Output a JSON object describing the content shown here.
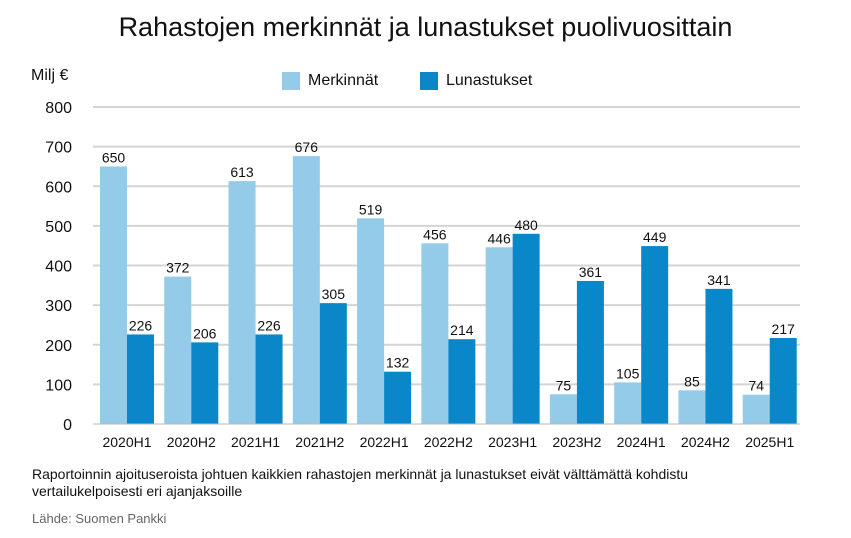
{
  "chart_data": {
    "type": "bar",
    "title": "Rahastojen merkinnät ja lunastukset puolivuosittain",
    "ylabel": "Milj €",
    "xlabel": "",
    "ylim": [
      0,
      800
    ],
    "yticks": [
      0,
      100,
      200,
      300,
      400,
      500,
      600,
      700,
      800
    ],
    "grid": true,
    "legend_position": "top",
    "categories": [
      "2020H1",
      "2020H2",
      "2021H1",
      "2021H2",
      "2022H1",
      "2022H2",
      "2023H1",
      "2023H2",
      "2024H1",
      "2024H2",
      "2025H1"
    ],
    "series": [
      {
        "name": "Merkinnät",
        "color": "#93cbe8",
        "values": [
          650,
          372,
          613,
          676,
          519,
          456,
          446,
          75,
          105,
          85,
          74
        ]
      },
      {
        "name": "Lunastukset",
        "color": "#0a87c9",
        "values": [
          226,
          206,
          226,
          305,
          132,
          214,
          480,
          361,
          449,
          341,
          217
        ]
      }
    ],
    "note": "Raportoinnin ajoituseroista johtuen kaikkien rahastojen merkinnät ja lunastukset eivät välttämättä kohdistu vertailukelpoisesti eri ajanjaksoille",
    "source": "Lähde: Suomen Pankki"
  }
}
